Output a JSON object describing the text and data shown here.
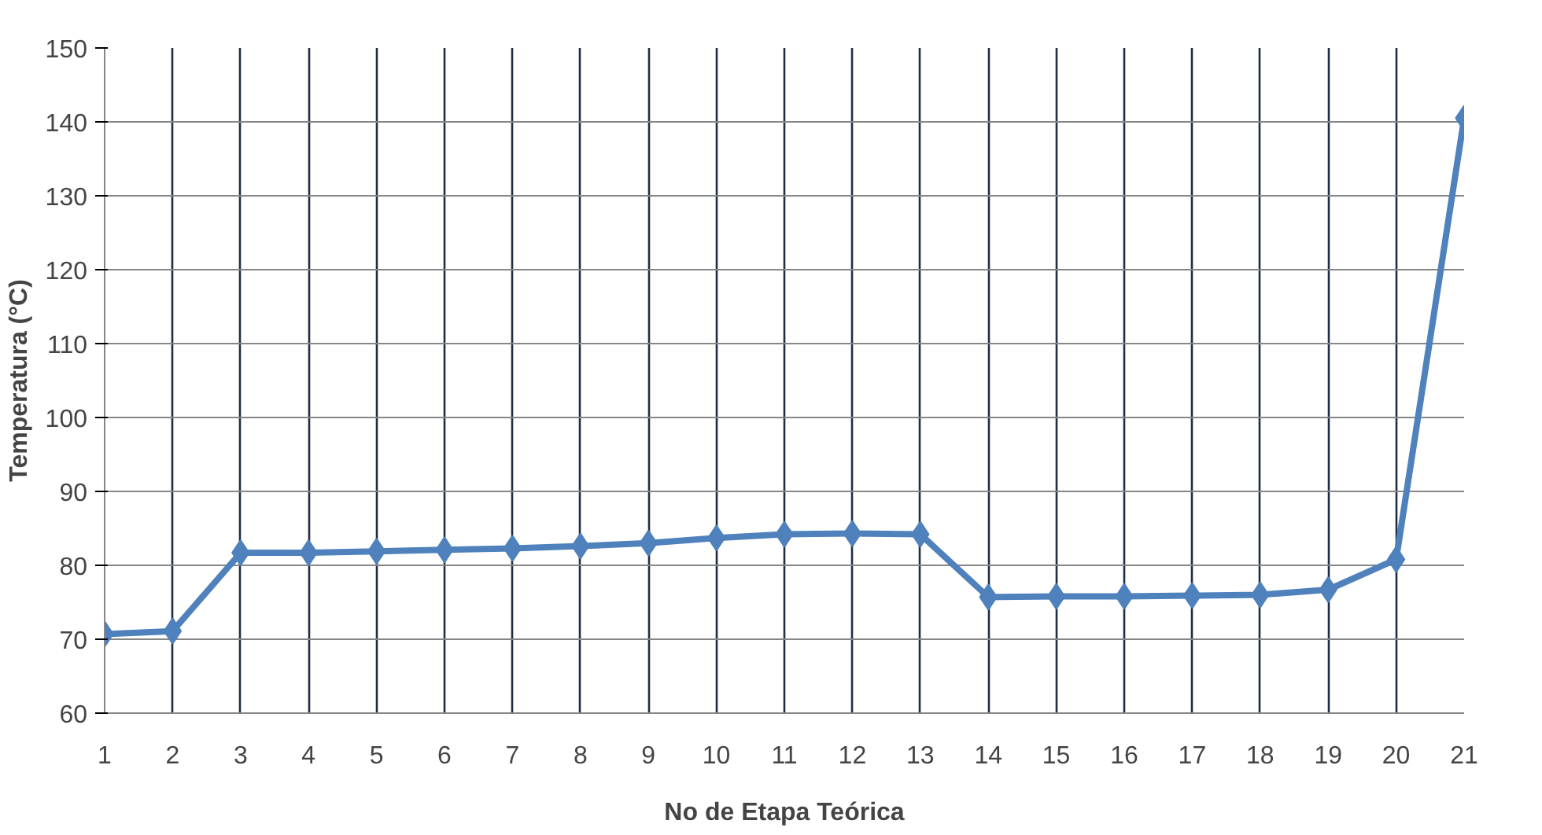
{
  "chart_data": {
    "type": "line",
    "xlabel": "No de Etapa Teórica",
    "ylabel": "Temperatura (°C)",
    "x": [
      1,
      2,
      3,
      4,
      5,
      6,
      7,
      8,
      9,
      10,
      11,
      12,
      13,
      14,
      15,
      16,
      17,
      18,
      19,
      20,
      21
    ],
    "series": [
      {
        "color": "#4f81bd",
        "values": [
          70.7,
          71.1,
          81.7,
          81.7,
          81.9,
          82.1,
          82.3,
          82.6,
          83.0,
          83.7,
          84.2,
          84.3,
          84.2,
          75.7,
          75.8,
          75.8,
          75.9,
          76.0,
          76.7,
          80.8,
          140.5
        ]
      }
    ],
    "xlim": [
      1,
      21
    ],
    "xticks": [
      1,
      2,
      3,
      4,
      5,
      6,
      7,
      8,
      9,
      10,
      11,
      12,
      13,
      14,
      15,
      16,
      17,
      18,
      19,
      20,
      21
    ],
    "ylim": [
      60,
      150
    ],
    "yticks": [
      60,
      70,
      80,
      90,
      100,
      110,
      120,
      130,
      140,
      150
    ],
    "grid": true,
    "marker": "diamond",
    "line_style": "solid"
  }
}
